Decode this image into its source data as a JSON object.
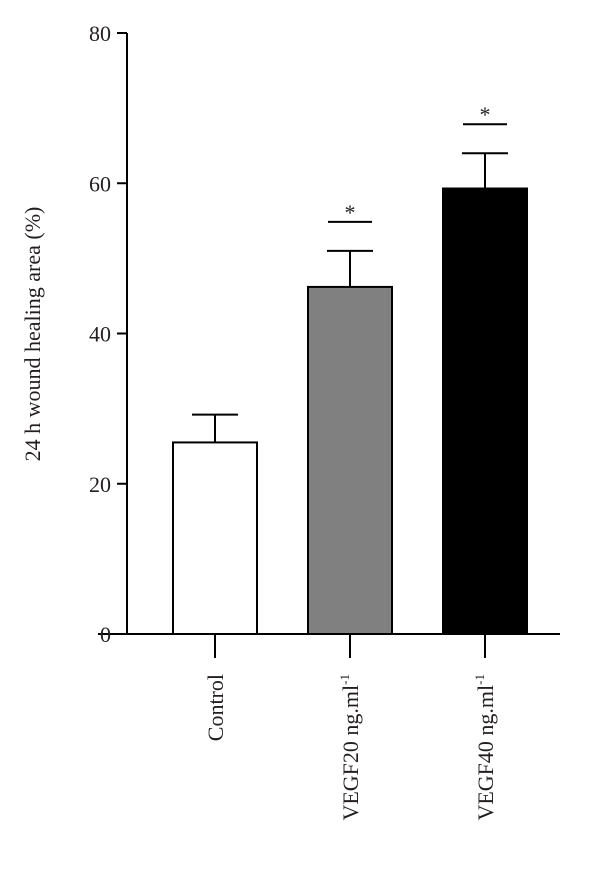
{
  "chart_data": {
    "type": "bar",
    "title": "",
    "xlabel": "",
    "ylabel": "24 h wound healing area (%)",
    "ylim": [
      0,
      80
    ],
    "yticks": [
      0,
      20,
      40,
      60,
      80
    ],
    "grid": false,
    "legend": "none",
    "categories": [
      "Control",
      "VEGF20 ng.ml",
      "VEGF40 ng.ml"
    ],
    "category_superscripts": [
      "",
      "-1",
      "-1"
    ],
    "values": [
      25.5,
      46.2,
      59.3
    ],
    "error_upper": [
      29.2,
      51.0,
      64.0
    ],
    "significance": [
      "",
      "*",
      "*"
    ],
    "bar_colors": [
      "#ffffff",
      "#808080",
      "#000000"
    ],
    "edge_color": "#000000"
  }
}
